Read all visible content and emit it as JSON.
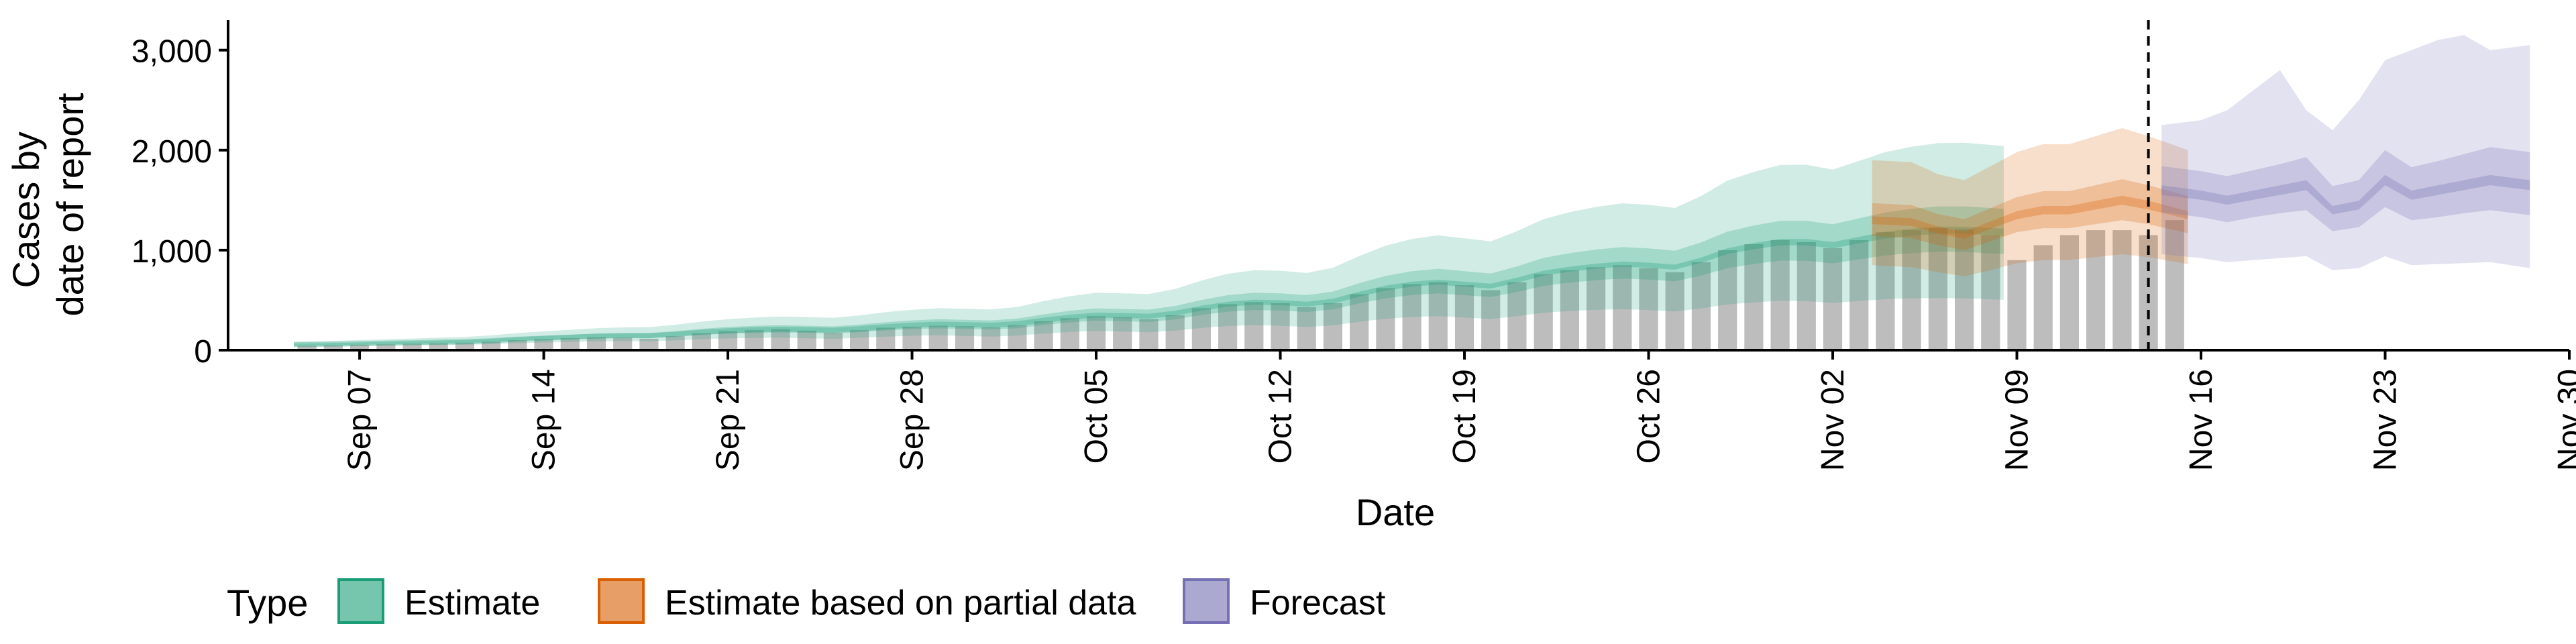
{
  "chart_data": {
    "type": "bar",
    "title": "",
    "xlabel": "Date",
    "ylabel_lines": [
      "Cases by",
      "date of report"
    ],
    "ylim": [
      0,
      3300
    ],
    "yticks": [
      0,
      1000,
      2000,
      3000
    ],
    "ytick_labels": [
      "0",
      "1,000",
      "2,000",
      "3,000"
    ],
    "x_range": [
      "2020-09-02",
      "2020-11-30"
    ],
    "xticks": [
      "2020-09-07",
      "2020-09-14",
      "2020-09-21",
      "2020-09-28",
      "2020-10-05",
      "2020-10-12",
      "2020-10-19",
      "2020-10-26",
      "2020-11-02",
      "2020-11-09",
      "2020-11-16",
      "2020-11-23",
      "2020-11-30"
    ],
    "xtick_labels": [
      "Sep 07",
      "Sep 14",
      "Sep 21",
      "Sep 28",
      "Oct 05",
      "Oct 12",
      "Oct 19",
      "Oct 26",
      "Nov 02",
      "Nov 09",
      "Nov 16",
      "Nov 23",
      "Nov 30"
    ],
    "forecast_date": "2020-11-14",
    "bars": {
      "start": "2020-09-05",
      "values": [
        45,
        50,
        55,
        60,
        65,
        70,
        75,
        85,
        100,
        110,
        120,
        130,
        125,
        115,
        140,
        170,
        190,
        200,
        210,
        195,
        175,
        200,
        225,
        235,
        245,
        240,
        230,
        250,
        290,
        320,
        340,
        330,
        310,
        350,
        420,
        460,
        480,
        470,
        430,
        470,
        560,
        620,
        660,
        680,
        650,
        600,
        680,
        760,
        800,
        830,
        850,
        820,
        780,
        880,
        1000,
        1060,
        1100,
        1080,
        1020,
        1100,
        1180,
        1200,
        1220,
        1210,
        1150,
        900,
        1050,
        1150,
        1200,
        1200,
        1150,
        1300
      ]
    },
    "series": [
      {
        "name": "Estimate",
        "start": "2020-09-05",
        "color": "#1B9E77",
        "median": [
          55,
          60,
          65,
          70,
          75,
          80,
          85,
          95,
          110,
          120,
          130,
          140,
          145,
          145,
          160,
          180,
          195,
          205,
          210,
          205,
          200,
          215,
          235,
          250,
          260,
          255,
          250,
          265,
          300,
          330,
          350,
          345,
          340,
          370,
          420,
          460,
          480,
          475,
          460,
          490,
          560,
          620,
          660,
          680,
          660,
          640,
          700,
          770,
          810,
          840,
          860,
          850,
          830,
          900,
          990,
          1040,
          1080,
          1080,
          1050,
          1100,
          1150,
          1180,
          1200,
          1200,
          1180
        ],
        "q25": [
          45,
          50,
          55,
          60,
          63,
          68,
          72,
          80,
          95,
          102,
          110,
          118,
          122,
          120,
          135,
          152,
          165,
          172,
          178,
          172,
          166,
          180,
          198,
          210,
          218,
          212,
          206,
          220,
          252,
          278,
          295,
          290,
          282,
          308,
          352,
          385,
          402,
          396,
          382,
          408,
          468,
          518,
          552,
          568,
          550,
          532,
          582,
          642,
          676,
          700,
          716,
          706,
          688,
          746,
          820,
          862,
          896,
          894,
          868,
          908,
          948,
          970,
          985,
          982,
          962
        ],
        "q75": [
          65,
          71,
          77,
          83,
          89,
          95,
          101,
          113,
          130,
          142,
          154,
          166,
          172,
          172,
          190,
          214,
          232,
          244,
          250,
          244,
          238,
          256,
          280,
          298,
          310,
          304,
          298,
          316,
          358,
          394,
          418,
          412,
          406,
          442,
          502,
          550,
          574,
          568,
          550,
          586,
          670,
          742,
          790,
          814,
          790,
          766,
          838,
          922,
          970,
          1006,
          1030,
          1018,
          994,
          1078,
          1186,
          1246,
          1294,
          1294,
          1258,
          1318,
          1378,
          1414,
          1438,
          1438,
          1414
        ],
        "lower": [
          35,
          38,
          42,
          45,
          48,
          51,
          54,
          60,
          70,
          76,
          82,
          88,
          90,
          88,
          98,
          110,
          118,
          122,
          125,
          120,
          114,
          124,
          136,
          144,
          148,
          142,
          136,
          146,
          166,
          182,
          192,
          186,
          180,
          196,
          222,
          242,
          250,
          244,
          232,
          248,
          284,
          314,
          332,
          340,
          326,
          312,
          340,
          374,
          392,
          404,
          410,
          402,
          388,
          418,
          458,
          478,
          494,
          490,
          472,
          492,
          510,
          518,
          522,
          518,
          504
        ],
        "upper": [
          85,
          93,
          101,
          109,
          117,
          125,
          133,
          148,
          172,
          188,
          204,
          220,
          228,
          230,
          254,
          286,
          310,
          326,
          336,
          330,
          324,
          348,
          380,
          404,
          420,
          414,
          408,
          432,
          490,
          540,
          574,
          568,
          562,
          612,
          696,
          764,
          800,
          794,
          772,
          824,
          942,
          1044,
          1112,
          1148,
          1118,
          1088,
          1190,
          1310,
          1380,
          1432,
          1468,
          1454,
          1422,
          1542,
          1696,
          1782,
          1852,
          1854,
          1806,
          1892,
          1980,
          2034,
          2070,
          2074,
          2042
        ]
      },
      {
        "name": "Estimate based on partial data",
        "start": "2020-11-04",
        "color": "#D95F02",
        "median": [
          1300,
          1280,
          1200,
          1150,
          1250,
          1350,
          1400,
          1400,
          1450,
          1500,
          1450,
          1350
        ],
        "q25": [
          1140,
          1120,
          1050,
          1000,
          1090,
          1180,
          1220,
          1220,
          1260,
          1300,
          1260,
          1170
        ],
        "q75": [
          1470,
          1450,
          1360,
          1310,
          1420,
          1530,
          1590,
          1590,
          1650,
          1710,
          1650,
          1540
        ],
        "lower": [
          850,
          830,
          780,
          740,
          800,
          870,
          900,
          900,
          930,
          960,
          930,
          860
        ],
        "upper": [
          1900,
          1880,
          1760,
          1700,
          1840,
          1980,
          2060,
          2060,
          2140,
          2220,
          2140,
          2000
        ]
      },
      {
        "name": "Forecast",
        "start": "2020-11-15",
        "color": "#7570B3",
        "median": [
          1600,
          1550,
          1500,
          1550,
          1600,
          1650,
          1400,
          1450,
          1700,
          1550,
          1600,
          1650,
          1700,
          1650
        ],
        "q25": [
          1380,
          1330,
          1280,
          1330,
          1370,
          1400,
          1190,
          1230,
          1430,
          1300,
          1330,
          1370,
          1400,
          1350
        ],
        "q75": [
          1840,
          1790,
          1740,
          1800,
          1860,
          1930,
          1640,
          1700,
          2000,
          1830,
          1890,
          1960,
          2030,
          1980
        ],
        "lower": [
          960,
          920,
          880,
          900,
          920,
          940,
          800,
          820,
          940,
          850,
          860,
          870,
          880,
          820
        ],
        "upper": [
          2250,
          2300,
          2400,
          2600,
          2800,
          2400,
          2200,
          2500,
          2900,
          3000,
          3100,
          3150,
          3000,
          3050
        ]
      }
    ],
    "legend": {
      "title": "Type",
      "position": "bottom",
      "items": [
        {
          "label": "Estimate",
          "color": "#1B9E77"
        },
        {
          "label": "Estimate based on partial data",
          "color": "#D95F02"
        },
        {
          "label": "Forecast",
          "color": "#7570B3"
        }
      ]
    },
    "grid": false
  }
}
